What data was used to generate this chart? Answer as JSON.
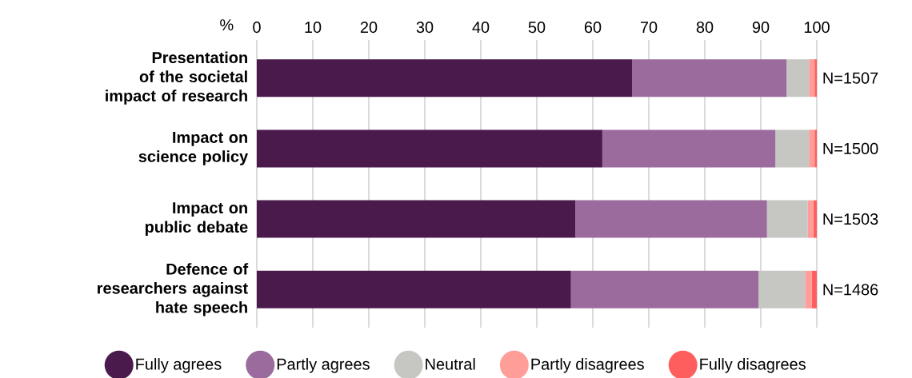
{
  "chart_data": {
    "type": "bar",
    "orientation": "horizontal",
    "stacked": true,
    "categories": [
      "Presentation of the societal impact of research",
      "Impact on science policy",
      "Impact on public debate",
      "Defence of researchers against hate speech"
    ],
    "series": [
      {
        "name": "Fully agrees",
        "color": "#4a1a4c",
        "values": [
          67.0,
          61.7,
          56.9,
          56.1
        ]
      },
      {
        "name": "Partly agrees",
        "color": "#9b6b9e",
        "values": [
          27.6,
          30.9,
          34.2,
          33.5
        ]
      },
      {
        "name": "Neutral",
        "color": "#c6c6c2",
        "values": [
          4.0,
          6.0,
          7.3,
          8.3
        ]
      },
      {
        "name": "Partly disagrees",
        "color": "#ff9e99",
        "values": [
          1.0,
          1.0,
          1.0,
          1.2
        ]
      },
      {
        "name": "Fully disagrees",
        "color": "#ff5e5e",
        "values": [
          0.4,
          0.4,
          0.6,
          0.9
        ]
      }
    ],
    "xlabel": "%",
    "xlim": [
      0,
      100
    ],
    "xticks": [
      0,
      10,
      20,
      30,
      40,
      50,
      60,
      70,
      80,
      90,
      100
    ],
    "grid": "x",
    "legend": "bottom",
    "annotations": [
      "N=1507",
      "N=1500",
      "N=1503",
      "N=1486"
    ]
  }
}
